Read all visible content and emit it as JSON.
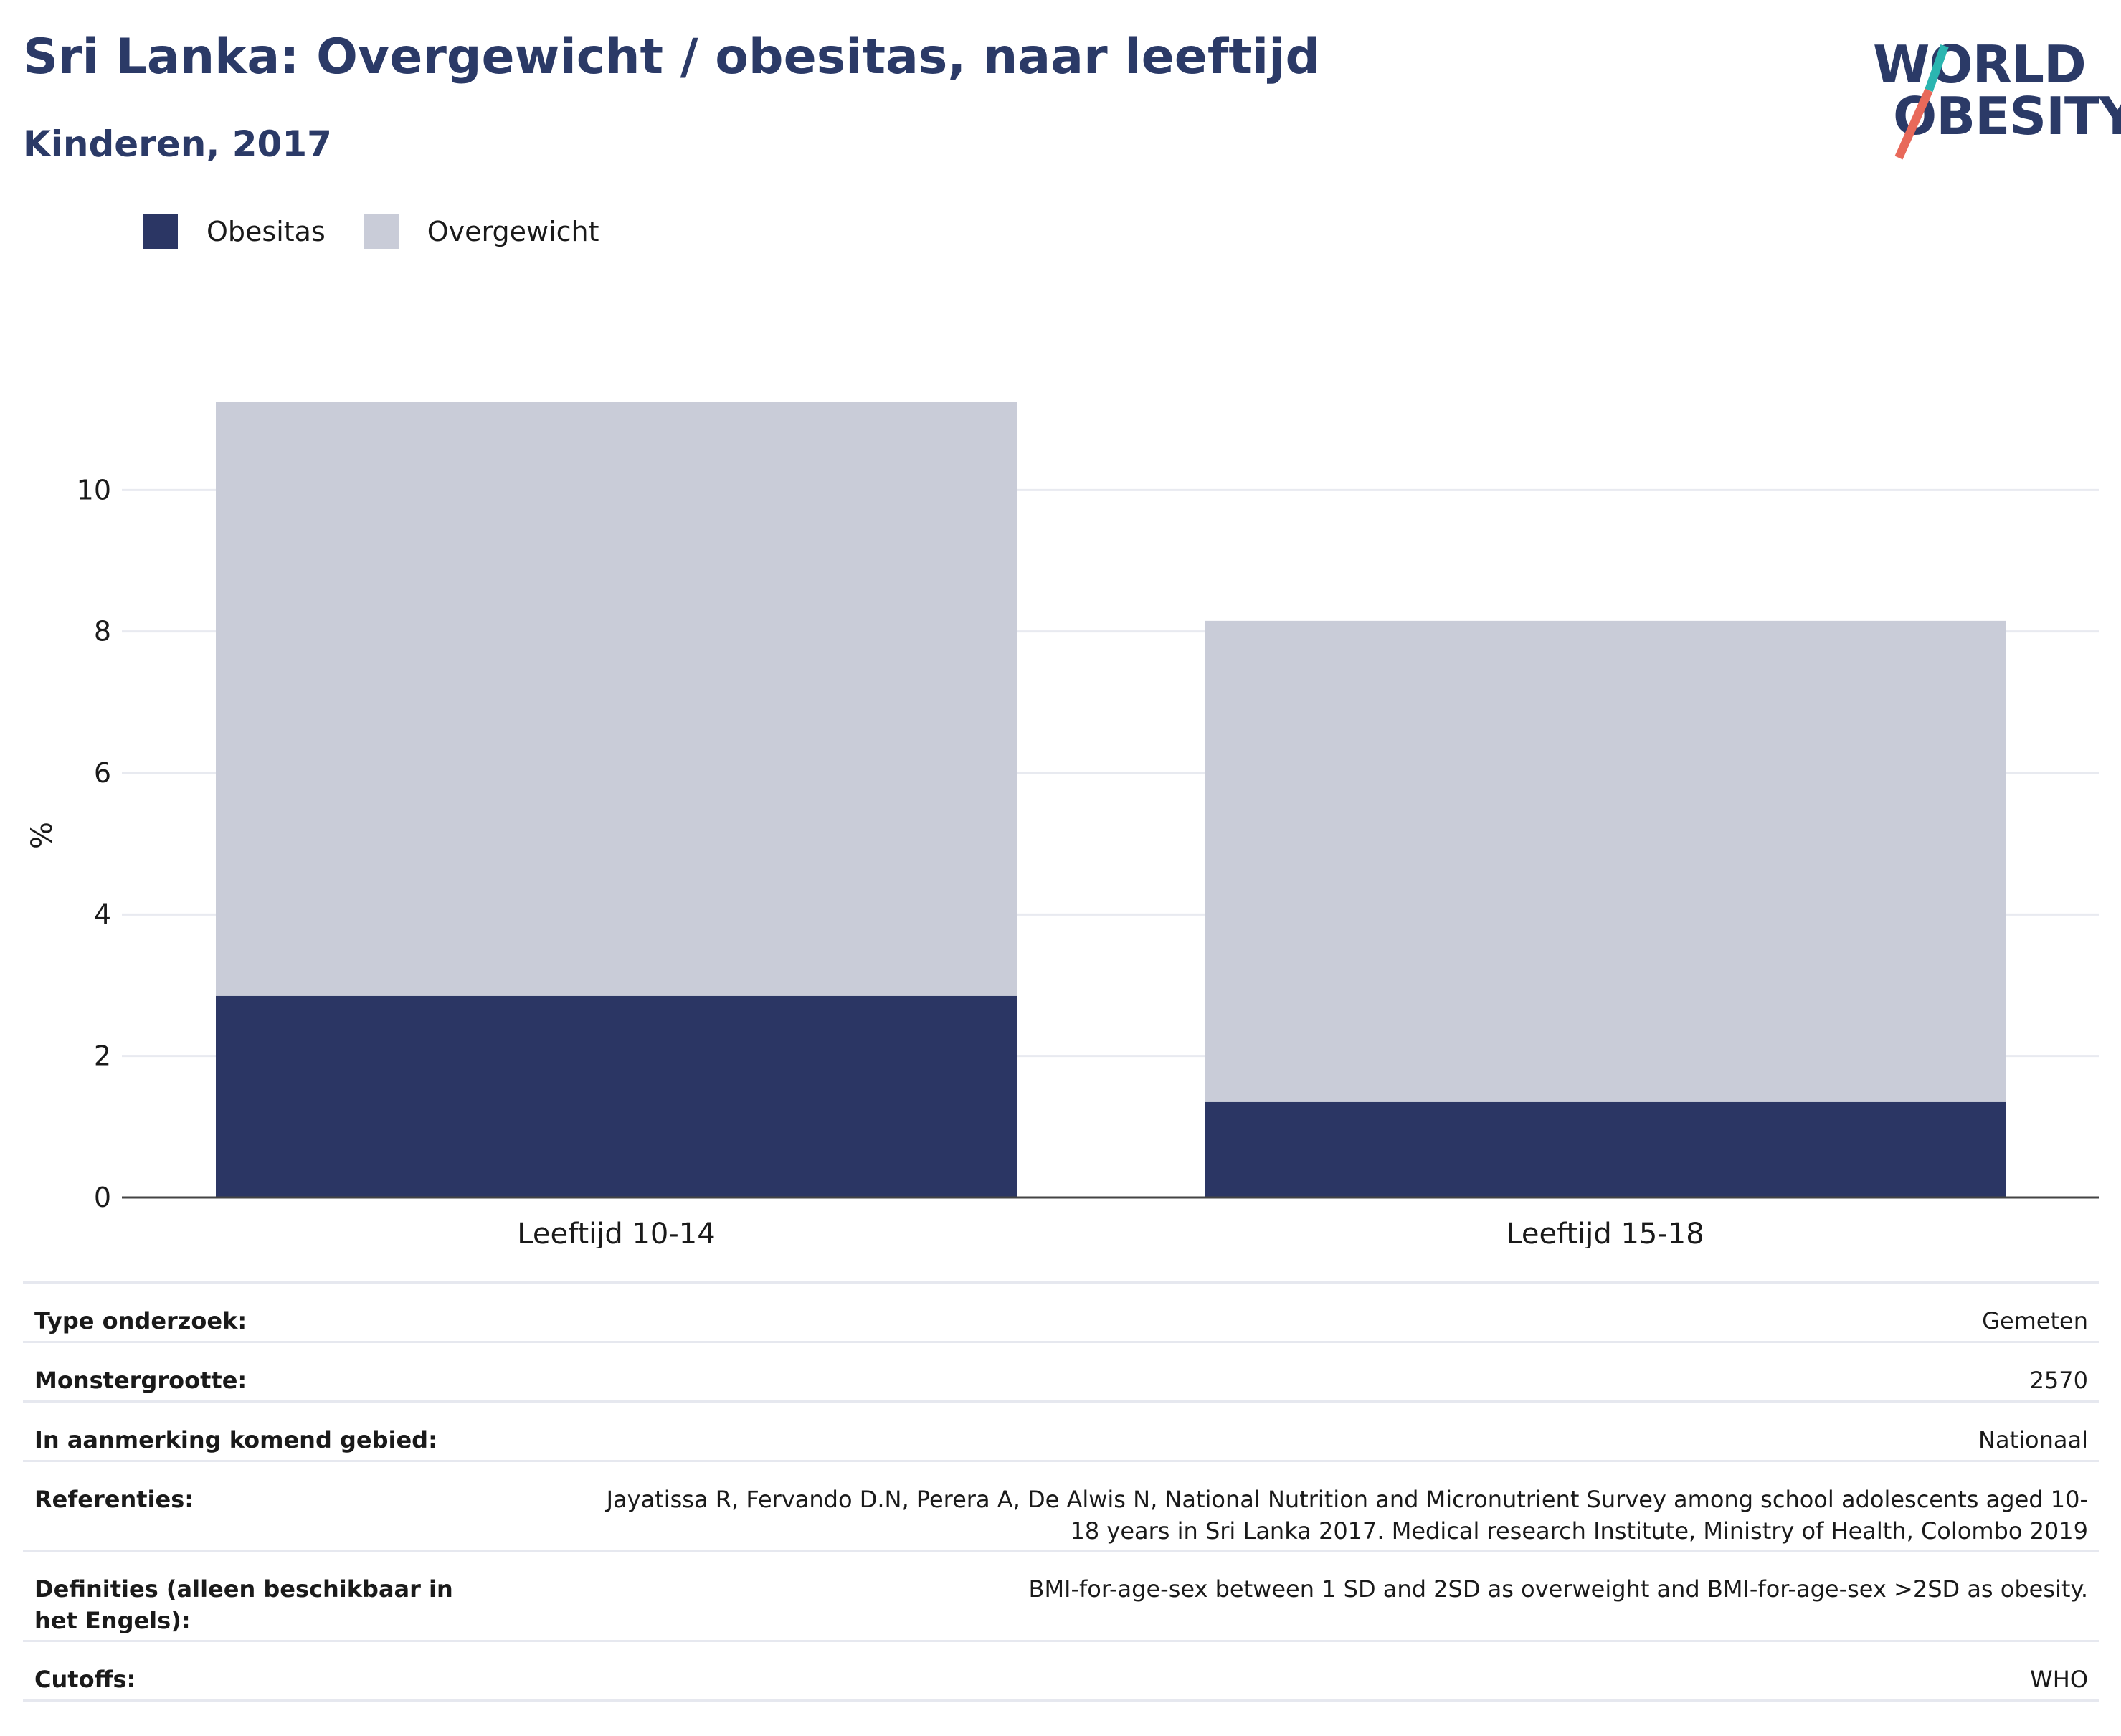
{
  "header": {
    "title": "Sri Lanka: Overgewicht / obesitas, naar leeftijd",
    "subtitle": "Kinderen, 2017"
  },
  "logo": {
    "line1": "WORLD",
    "line2": "OBESITY",
    "accent_colors": [
      "#2bb5b0",
      "#e8695a"
    ],
    "text_color": "#2b3a67"
  },
  "legend": [
    {
      "label": "Obesitas",
      "color": "#2b3664"
    },
    {
      "label": "Overgewicht",
      "color": "#c9ccd8"
    }
  ],
  "chart_data": {
    "type": "bar",
    "stacked": true,
    "categories": [
      "Leeftijd 10-14",
      "Leeftijd 15-18"
    ],
    "series": [
      {
        "name": "Obesitas",
        "values": [
          2.85,
          1.35
        ],
        "color": "#2b3664"
      },
      {
        "name": "Overgewicht",
        "values": [
          8.4,
          6.8
        ],
        "color": "#c9ccd8"
      }
    ],
    "totals": [
      11.25,
      8.15
    ],
    "ylabel": "%",
    "ylim": [
      0,
      11.25
    ],
    "yticks": [
      0,
      2,
      4,
      6,
      8,
      10
    ],
    "grid": true,
    "legend_position": "top-left"
  },
  "info_table": [
    {
      "label": "Type onderzoek:",
      "value": "Gemeten"
    },
    {
      "label": "Monstergrootte:",
      "value": "2570"
    },
    {
      "label": "In aanmerking komend gebied:",
      "value": "Nationaal"
    },
    {
      "label": "Referenties:",
      "value": "Jayatissa R, Fervando D.N, Perera A, De Alwis N, National Nutrition and Micronutrient Survey among school adolescents aged 10-18 years in Sri Lanka 2017. Medical research Institute, Ministry of Health, Colombo 2019"
    },
    {
      "label": "Definities (alleen beschikbaar in het Engels):",
      "value": "BMI-for-age-sex between 1 SD and 2SD as overweight and BMI-for-age-sex >2SD as obesity."
    },
    {
      "label": "Cutoffs:",
      "value": "WHO"
    }
  ]
}
